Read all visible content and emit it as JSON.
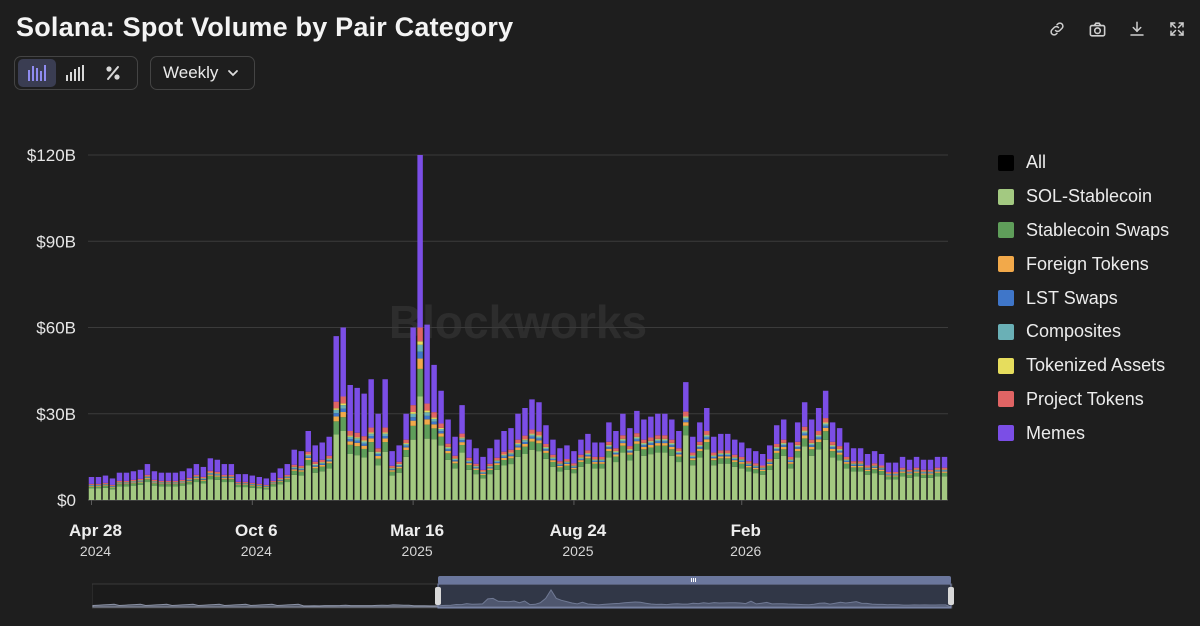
{
  "title": "Solana: Spot Volume by Pair Category",
  "toolbar": {
    "icons": [
      "link-icon",
      "camera-icon",
      "download-icon",
      "fullscreen-icon"
    ],
    "view_modes": [
      "grouped-bar-icon",
      "stacked-bar-icon",
      "percent-icon"
    ],
    "interval": "Weekly"
  },
  "legend": [
    {
      "name": "All",
      "color": "#000000"
    },
    {
      "name": "SOL-Stablecoin",
      "color": "#a3c981"
    },
    {
      "name": "Stablecoin Swaps",
      "color": "#5f9e5a"
    },
    {
      "name": "Foreign Tokens",
      "color": "#f2a94a"
    },
    {
      "name": "LST Swaps",
      "color": "#3f76c9"
    },
    {
      "name": "Composites",
      "color": "#6ab0b6"
    },
    {
      "name": "Tokenized Assets",
      "color": "#e6dd5d"
    },
    {
      "name": "Project Tokens",
      "color": "#e06464"
    },
    {
      "name": "Memes",
      "color": "#7b4ee6"
    }
  ],
  "watermark": "Blockworks",
  "chart_data": {
    "type": "bar",
    "stacked": true,
    "interval": "weekly",
    "y_ticks": [
      "$0",
      "$30B",
      "$60B",
      "$90B",
      "$120B"
    ],
    "ylim": [
      0,
      120
    ],
    "y_unit": "billions USD",
    "x_ticks": [
      {
        "label": "Apr 28",
        "year": "2024",
        "index": 0
      },
      {
        "label": "Oct 6",
        "year": "2024",
        "index": 23
      },
      {
        "label": "Mar 16",
        "year": "2025",
        "index": 46
      },
      {
        "label": "Aug 24",
        "year": "2025",
        "index": 69
      },
      {
        "label": "Feb",
        "year": "2026",
        "index": 93
      }
    ],
    "x_start": "2024-04-28",
    "totals": [
      8,
      8,
      8.5,
      7.5,
      9.5,
      9.5,
      10,
      10.5,
      12.5,
      10,
      9.5,
      9.5,
      9.5,
      10,
      11,
      12.5,
      11.5,
      14.5,
      14,
      12.5,
      12.5,
      9,
      9,
      8.5,
      8,
      7.5,
      9.5,
      11,
      12.5,
      17.5,
      17,
      24,
      19,
      20,
      22,
      57,
      60,
      40,
      39,
      37,
      42,
      30,
      42,
      17,
      19,
      30,
      60,
      120,
      61,
      47,
      38,
      28,
      22,
      33,
      21,
      18,
      15,
      18,
      21,
      24,
      25,
      30,
      32,
      35,
      34,
      26,
      21,
      18,
      19,
      17,
      21,
      23,
      20,
      20,
      27,
      24,
      30,
      25,
      31,
      28,
      29,
      30,
      30,
      28,
      24,
      41,
      22,
      27,
      32,
      22,
      23,
      23,
      21,
      20,
      18,
      17,
      16,
      19,
      26,
      28,
      20,
      27,
      34,
      28,
      32,
      38,
      27,
      25,
      20,
      18,
      18,
      16,
      17,
      16,
      13,
      13,
      15,
      14,
      15,
      14,
      14,
      15,
      15
    ],
    "series": [
      {
        "name": "SOL-Stablecoin",
        "share": [
          0.5,
          0.5,
          0.5,
          0.5,
          0.5,
          0.5,
          0.5,
          0.5,
          0.5,
          0.5,
          0.5,
          0.5,
          0.5,
          0.5,
          0.5,
          0.5,
          0.5,
          0.5,
          0.5,
          0.5,
          0.5,
          0.5,
          0.5,
          0.5,
          0.5,
          0.5,
          0.5,
          0.5,
          0.5,
          0.5,
          0.5,
          0.5,
          0.5,
          0.5,
          0.5,
          0.4,
          0.4,
          0.4,
          0.4,
          0.4,
          0.4,
          0.4,
          0.4,
          0.5,
          0.5,
          0.5,
          0.35,
          0.3,
          0.35,
          0.45,
          0.5,
          0.5,
          0.5,
          0.5,
          0.5,
          0.5,
          0.5,
          0.5,
          0.5,
          0.5,
          0.5,
          0.5,
          0.5,
          0.5,
          0.5,
          0.55,
          0.55,
          0.55,
          0.55,
          0.55,
          0.55,
          0.55,
          0.55,
          0.55,
          0.55,
          0.55,
          0.55,
          0.55,
          0.55,
          0.55,
          0.55,
          0.55,
          0.55,
          0.55,
          0.55,
          0.55,
          0.55,
          0.55,
          0.55,
          0.55,
          0.55,
          0.55,
          0.55,
          0.55,
          0.55,
          0.55,
          0.55,
          0.55,
          0.55,
          0.55,
          0.55,
          0.55,
          0.55,
          0.55,
          0.55,
          0.55,
          0.55,
          0.55,
          0.55,
          0.55,
          0.55,
          0.55,
          0.55,
          0.55,
          0.55,
          0.55,
          0.55,
          0.55,
          0.55,
          0.55,
          0.55,
          0.55,
          0.55
        ]
      },
      {
        "name": "Stablecoin Swaps",
        "share": 0.08
      },
      {
        "name": "Foreign Tokens",
        "share": 0.03
      },
      {
        "name": "LST Swaps",
        "share": 0.02
      },
      {
        "name": "Composites",
        "share": 0.02
      },
      {
        "name": "Tokenized Assets",
        "share": 0.01
      },
      {
        "name": "Project Tokens",
        "share": 0.04
      },
      {
        "name": "Memes",
        "share": "remainder"
      }
    ],
    "legend_position": "right",
    "grid": true
  }
}
